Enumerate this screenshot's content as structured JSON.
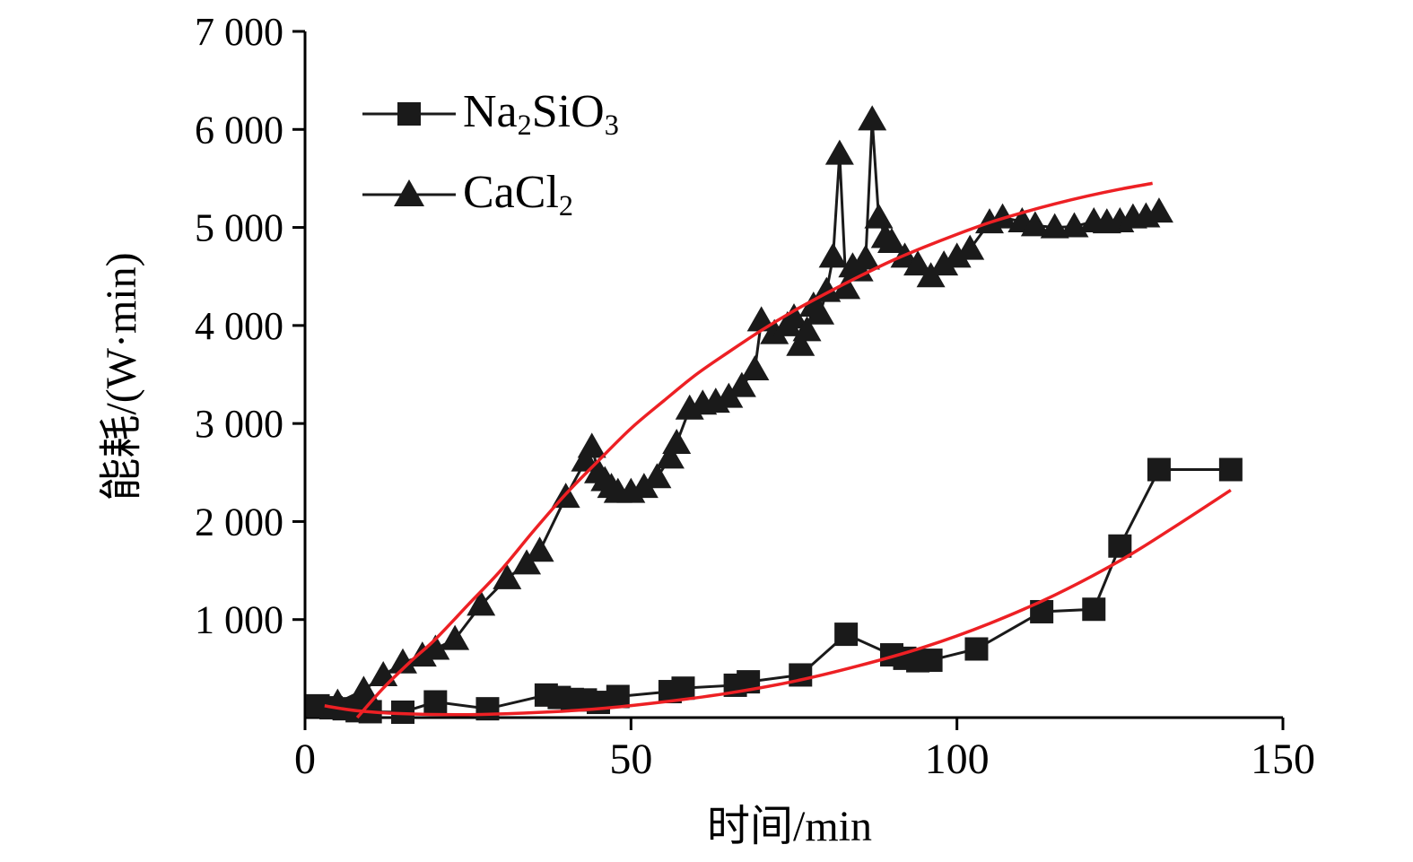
{
  "chart_data": {
    "type": "scatter",
    "title": "",
    "xlabel": "时间/min",
    "ylabel": "能耗/(W·min)",
    "xlim": [
      0,
      150
    ],
    "ylim": [
      0,
      7000
    ],
    "x_ticks": [
      0,
      50,
      100,
      150
    ],
    "x_tick_labels": [
      "0",
      "50",
      "100",
      "150"
    ],
    "y_ticks": [
      1000,
      2000,
      3000,
      4000,
      5000,
      6000,
      7000
    ],
    "y_tick_labels": [
      "1 000",
      "2 000",
      "3 000",
      "4 000",
      "5 000",
      "6 000",
      "7 000"
    ],
    "grid": false,
    "legend_position": "upper-left",
    "colors": {
      "data": "#1a1a1a",
      "fit": "#ed2024",
      "axis": "#000000"
    },
    "legend": {
      "entries": [
        {
          "id": "na2sio3",
          "marker": "square",
          "segments": [
            {
              "text": "Na"
            },
            {
              "text": "2",
              "sub": true
            },
            {
              "text": "SiO"
            },
            {
              "text": "3",
              "sub": true
            }
          ]
        },
        {
          "id": "cacl2",
          "marker": "triangle",
          "segments": [
            {
              "text": "CaCl"
            },
            {
              "text": "2",
              "sub": true
            }
          ]
        }
      ]
    },
    "series": [
      {
        "name": "Na2SiO3",
        "marker": "square",
        "color": "#1a1a1a",
        "points": [
          [
            2,
            120
          ],
          [
            4,
            100
          ],
          [
            6,
            90
          ],
          [
            8,
            70
          ],
          [
            10,
            60
          ],
          [
            15,
            55
          ],
          [
            20,
            160
          ],
          [
            28,
            90
          ],
          [
            37,
            230
          ],
          [
            39,
            205
          ],
          [
            41,
            185
          ],
          [
            43,
            180
          ],
          [
            45,
            155
          ],
          [
            48,
            215
          ],
          [
            56,
            265
          ],
          [
            58,
            300
          ],
          [
            66,
            330
          ],
          [
            68,
            365
          ],
          [
            76,
            435
          ],
          [
            83,
            850
          ],
          [
            90,
            640
          ],
          [
            92,
            605
          ],
          [
            94,
            580
          ],
          [
            96,
            585
          ],
          [
            103,
            700
          ],
          [
            113,
            1080
          ],
          [
            121,
            1105
          ],
          [
            125,
            1750
          ],
          [
            131,
            2530
          ],
          [
            142,
            2530
          ]
        ]
      },
      {
        "name": "CaCl2",
        "marker": "triangle",
        "color": "#1a1a1a",
        "points": [
          [
            5,
            150
          ],
          [
            9,
            280
          ],
          [
            12,
            430
          ],
          [
            15,
            560
          ],
          [
            18,
            630
          ],
          [
            20,
            700
          ],
          [
            23,
            800
          ],
          [
            27,
            1150
          ],
          [
            31,
            1420
          ],
          [
            34,
            1570
          ],
          [
            36,
            1700
          ],
          [
            40,
            2250
          ],
          [
            43,
            2620
          ],
          [
            44,
            2760
          ],
          [
            45,
            2500
          ],
          [
            46,
            2420
          ],
          [
            47,
            2350
          ],
          [
            48,
            2300
          ],
          [
            50,
            2300
          ],
          [
            52,
            2350
          ],
          [
            54,
            2450
          ],
          [
            56,
            2650
          ],
          [
            57,
            2800
          ],
          [
            59,
            3150
          ],
          [
            61,
            3200
          ],
          [
            63,
            3220
          ],
          [
            65,
            3270
          ],
          [
            67,
            3380
          ],
          [
            69,
            3550
          ],
          [
            70,
            4050
          ],
          [
            72,
            3920
          ],
          [
            74,
            4000
          ],
          [
            75,
            4080
          ],
          [
            76,
            3800
          ],
          [
            77,
            3950
          ],
          [
            78,
            4200
          ],
          [
            79,
            4120
          ],
          [
            80,
            4350
          ],
          [
            81,
            4700
          ],
          [
            82,
            5750
          ],
          [
            83,
            4380
          ],
          [
            84,
            4600
          ],
          [
            85,
            4560
          ],
          [
            86,
            4680
          ],
          [
            87,
            6100
          ],
          [
            88,
            5100
          ],
          [
            89,
            4900
          ],
          [
            90,
            4850
          ],
          [
            92,
            4700
          ],
          [
            94,
            4620
          ],
          [
            96,
            4500
          ],
          [
            98,
            4620
          ],
          [
            100,
            4700
          ],
          [
            102,
            4780
          ],
          [
            105,
            5050
          ],
          [
            107,
            5100
          ],
          [
            110,
            5060
          ],
          [
            112,
            5020
          ],
          [
            115,
            5000
          ],
          [
            118,
            5010
          ],
          [
            121,
            5060
          ],
          [
            123,
            5050
          ],
          [
            125,
            5060
          ],
          [
            127,
            5100
          ],
          [
            129,
            5110
          ],
          [
            131,
            5160
          ]
        ]
      }
    ],
    "fits": [
      {
        "for": "CaCl2",
        "color": "#ed2024",
        "points": [
          [
            8,
            0
          ],
          [
            12,
            300
          ],
          [
            16,
            560
          ],
          [
            20,
            800
          ],
          [
            25,
            1150
          ],
          [
            30,
            1500
          ],
          [
            35,
            1900
          ],
          [
            40,
            2280
          ],
          [
            45,
            2620
          ],
          [
            50,
            2950
          ],
          [
            55,
            3230
          ],
          [
            60,
            3500
          ],
          [
            65,
            3730
          ],
          [
            70,
            3950
          ],
          [
            75,
            4150
          ],
          [
            80,
            4330
          ],
          [
            85,
            4500
          ],
          [
            90,
            4660
          ],
          [
            95,
            4800
          ],
          [
            100,
            4930
          ],
          [
            105,
            5050
          ],
          [
            110,
            5150
          ],
          [
            115,
            5240
          ],
          [
            120,
            5320
          ],
          [
            125,
            5390
          ],
          [
            130,
            5450
          ]
        ]
      },
      {
        "for": "Na2SiO3",
        "color": "#ed2024",
        "points": [
          [
            3,
            120
          ],
          [
            8,
            70
          ],
          [
            15,
            40
          ],
          [
            25,
            30
          ],
          [
            35,
            50
          ],
          [
            45,
            90
          ],
          [
            55,
            160
          ],
          [
            65,
            250
          ],
          [
            75,
            370
          ],
          [
            85,
            530
          ],
          [
            95,
            720
          ],
          [
            105,
            960
          ],
          [
            115,
            1250
          ],
          [
            125,
            1600
          ],
          [
            133,
            1930
          ],
          [
            142,
            2320
          ]
        ]
      }
    ]
  }
}
